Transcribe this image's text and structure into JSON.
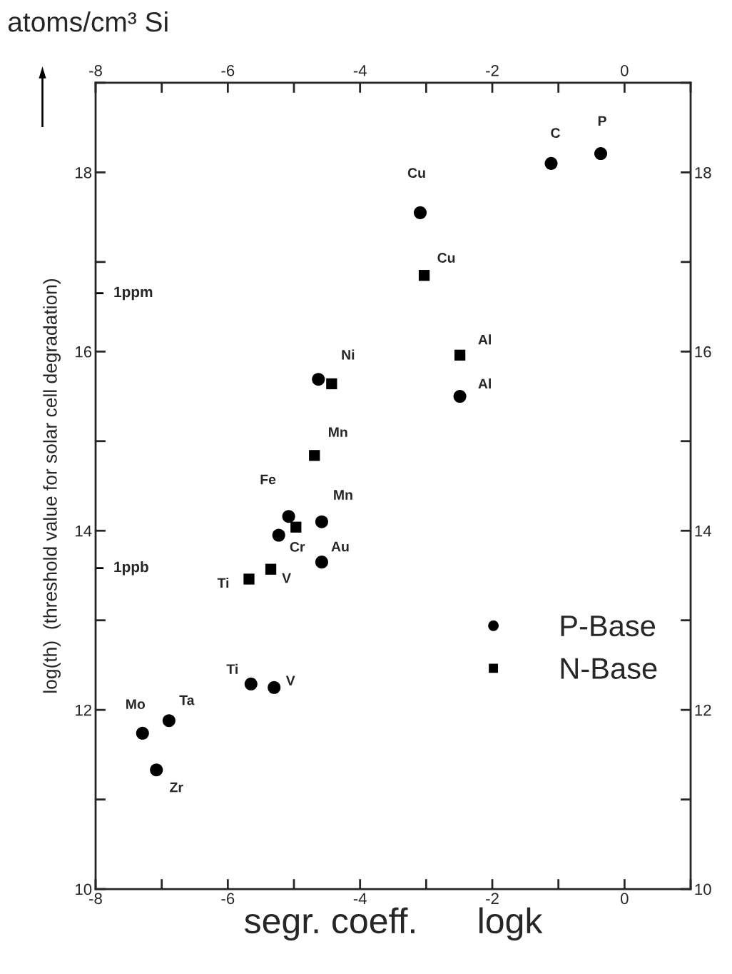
{
  "chart_data": {
    "type": "scatter",
    "title": "atoms/cm³ Si",
    "xlabel": "segr. coeff.      logk",
    "ylabel": "log(th)  (threshold value for solar cell degradation)",
    "xlim": [
      -8,
      1
    ],
    "ylim": [
      10,
      19
    ],
    "xticks": [
      -8,
      {
        "value": -7,
        "label": null
      },
      -6,
      {
        "value": -5,
        "label": null
      },
      -4,
      {
        "value": -3,
        "label": null
      },
      -2,
      {
        "value": -1,
        "label": null
      },
      0,
      {
        "value": 1,
        "label": null
      }
    ],
    "yticks": [
      10,
      {
        "value": 11,
        "label": null
      },
      12,
      {
        "value": 13,
        "label": null
      },
      14,
      {
        "value": 15,
        "label": null
      },
      16,
      {
        "value": 17,
        "label": null
      },
      18,
      {
        "value": 19,
        "label": null
      }
    ],
    "x2lim": [
      -8,
      1
    ],
    "x2ticks": [
      -8,
      {
        "value": -7,
        "label": null
      },
      -6,
      {
        "value": -5,
        "label": null
      },
      -4,
      {
        "value": -3,
        "label": null
      },
      -2,
      {
        "value": -1,
        "label": null
      },
      0,
      {
        "value": 1,
        "label": null
      }
    ],
    "y2lim": [
      10,
      19
    ],
    "y2ticks": [
      10,
      {
        "value": 11,
        "label": null
      },
      12,
      {
        "value": 13,
        "label": null
      },
      14,
      {
        "value": 15,
        "label": null
      },
      16,
      {
        "value": 17,
        "label": null
      },
      18,
      {
        "value": 19,
        "label": null
      }
    ],
    "grid": false,
    "legend": "bottom right",
    "series": [
      {
        "name": "P-Base",
        "color": "#000000",
        "marker": "circle",
        "x": [
          -0.36,
          -1.11,
          -3.09,
          -2.49,
          -4.63,
          -4.58,
          -5.08,
          -5.23,
          -4.58,
          -5.65,
          -5.3,
          -6.89,
          -7.29,
          -7.08
        ],
        "values": [
          18.21,
          18.1,
          17.55,
          15.5,
          15.69,
          14.1,
          14.16,
          13.95,
          13.65,
          12.29,
          12.25,
          11.88,
          11.74,
          11.33
        ]
      },
      {
        "name": "N-Base",
        "color": "#000000",
        "marker": "square",
        "x": [
          -3.03,
          -2.49,
          -4.43,
          -4.69,
          -4.97,
          -5.35,
          -5.68
        ],
        "values": [
          16.85,
          15.96,
          15.64,
          14.84,
          14.04,
          13.57,
          13.46
        ]
      }
    ],
    "annotations": [
      {
        "text": "P",
        "x": -0.36,
        "y": 18.21
      },
      {
        "text": "C",
        "x": -1.11,
        "y": 18.1
      },
      {
        "text": "Cu",
        "x": -3.09,
        "y": 17.55
      },
      {
        "text": "Cu",
        "x": -3.03,
        "y": 16.85
      },
      {
        "text": "Al",
        "x": -2.49,
        "y": 15.96
      },
      {
        "text": "Al",
        "x": -2.49,
        "y": 15.5
      },
      {
        "text": "Ni",
        "x": -4.43,
        "y": 15.64
      },
      {
        "text": "Mn",
        "x": -4.69,
        "y": 14.84
      },
      {
        "text": "Fe",
        "x": -5.08,
        "y": 14.16
      },
      {
        "text": "Mn",
        "x": -4.58,
        "y": 14.1
      },
      {
        "text": "Cr",
        "x": -5.23,
        "y": 13.95
      },
      {
        "text": "Au",
        "x": -4.58,
        "y": 13.65
      },
      {
        "text": "Ti",
        "x": -5.68,
        "y": 13.46
      },
      {
        "text": "V",
        "x": -5.35,
        "y": 13.57
      },
      {
        "text": "Ti",
        "x": -5.65,
        "y": 12.29
      },
      {
        "text": "V",
        "x": -5.3,
        "y": 12.25
      },
      {
        "text": "Mo",
        "x": -7.29,
        "y": 11.74
      },
      {
        "text": "Ta",
        "x": -6.89,
        "y": 11.88
      },
      {
        "text": "Zr",
        "x": -7.08,
        "y": 11.33
      },
      "1ppm",
      "1ppb"
    ]
  }
}
